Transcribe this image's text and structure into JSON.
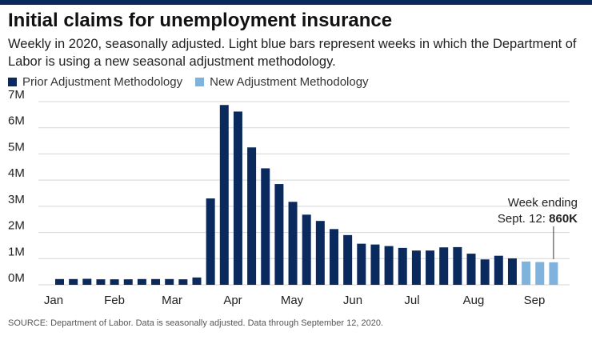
{
  "title": "Initial claims for unemployment insurance",
  "subtitle": "Weekly in 2020, seasonally adjusted. Light blue bars represent weeks in which the Department of Labor is using a new seasonal adjustment methodology.",
  "source": "SOURCE: Department of Labor. Data is seasonally adjusted. Data through September 12, 2020.",
  "colors": {
    "prior": "#0a2a5e",
    "new": "#7fb2dd",
    "topbar": "#0a2a5e"
  },
  "chart_data": {
    "type": "bar",
    "series": [
      {
        "name": "Prior Adjustment Methodology",
        "color": "#0a2a5e"
      },
      {
        "name": "New Adjustment Methodology",
        "color": "#7fb2dd"
      }
    ],
    "values": [
      0.22,
      0.22,
      0.23,
      0.21,
      0.21,
      0.21,
      0.22,
      0.22,
      0.22,
      0.21,
      0.28,
      3.3,
      6.87,
      6.62,
      5.25,
      4.45,
      3.85,
      3.17,
      2.68,
      2.44,
      2.13,
      1.9,
      1.57,
      1.54,
      1.48,
      1.41,
      1.31,
      1.31,
      1.43,
      1.44,
      1.19,
      0.97,
      1.11,
      1.01,
      0.89,
      0.87,
      0.86
    ],
    "methodology": [
      "prior",
      "prior",
      "prior",
      "prior",
      "prior",
      "prior",
      "prior",
      "prior",
      "prior",
      "prior",
      "prior",
      "prior",
      "prior",
      "prior",
      "prior",
      "prior",
      "prior",
      "prior",
      "prior",
      "prior",
      "prior",
      "prior",
      "prior",
      "prior",
      "prior",
      "prior",
      "prior",
      "prior",
      "prior",
      "prior",
      "prior",
      "prior",
      "prior",
      "prior",
      "new",
      "new",
      "new"
    ],
    "month_labels": [
      "Jan",
      "Feb",
      "Mar",
      "Apr",
      "May",
      "Jun",
      "Jul",
      "Aug",
      "Sep"
    ],
    "yticks": [
      "0M",
      "1M",
      "2M",
      "3M",
      "4M",
      "5M",
      "6M",
      "7M"
    ],
    "ylim": [
      0,
      7
    ],
    "annotation": {
      "line1": "Week ending",
      "line2_prefix": "Sept. 12: ",
      "line2_value": "860K"
    }
  }
}
